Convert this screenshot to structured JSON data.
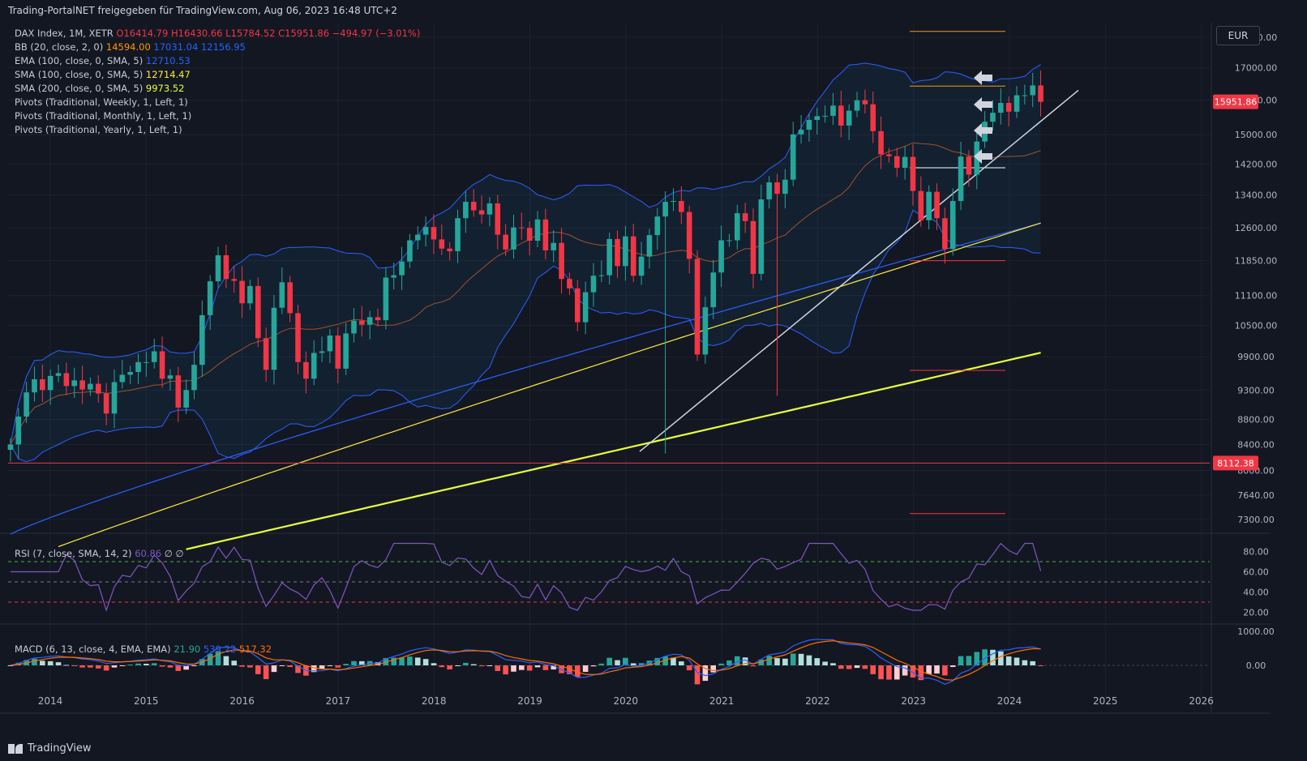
{
  "header": {
    "title": "Trading-PortalNET freigegeben für TradingView.com, Aug 06, 2023 16:48 UTC+2",
    "currency_button": "EUR",
    "footer_brand": "TradingView"
  },
  "legend": {
    "main": {
      "label": "DAX Index, 1M, XETR",
      "o": "O16414.79",
      "h": "H16430.66",
      "l": "L15784.52",
      "c": "C15951.86",
      "chg": "−494.97 (−3.01%)"
    },
    "bb": {
      "label": "BB (20, close, 2, 0)",
      "v1": "14594.00",
      "v2": "17031.04",
      "v3": "12156.95"
    },
    "ema100": {
      "label": "EMA (100, close, 0, SMA, 5)",
      "v": "12710.53"
    },
    "sma100": {
      "label": "SMA (100, close, 0, SMA, 5)",
      "v": "12714.47"
    },
    "sma200": {
      "label": "SMA (200, close, 0, SMA, 5)",
      "v": "9973.52"
    },
    "pivots": [
      "Pivots (Traditional, Weekly, 1, Left, 1)",
      "Pivots (Traditional, Monthly, 1, Left, 1)",
      "Pivots (Traditional, Yearly, 1, Left, 1)"
    ],
    "rsi": {
      "label": "RSI (7, close, SMA, 14, 2)",
      "v": "60.86",
      "extra": "∅ ∅"
    },
    "macd": {
      "label": "MACD (6, 13, close, 4, EMA, EMA)",
      "v1": "21.90",
      "v2": "539.22",
      "v3": "517.32"
    }
  },
  "colors": {
    "up": "#26a69a",
    "down": "#f23645",
    "bb": "#2962ff",
    "bb_basis": "#ff6d00",
    "ema": "#2962ff",
    "sma100": "#ffeb3b",
    "sma200": "#e7ff3b",
    "rsi": "#7e57c2",
    "macd": "#2962ff",
    "signal": "#ff6d00"
  },
  "chart_data": {
    "type": "candlestick",
    "symbol": "DAX Index",
    "interval": "1M",
    "x_axis": {
      "tick_labels": [
        "2014",
        "2015",
        "2016",
        "2017",
        "2018",
        "2019",
        "2020",
        "2021",
        "2022",
        "2023",
        "2024",
        "2025",
        "2026"
      ]
    },
    "y_axis": {
      "scale": "log",
      "tick_labels": [
        "18000.00",
        "17000.00",
        "16000.00",
        "15000.00",
        "14200.00",
        "13400.00",
        "12600.00",
        "11850.00",
        "11100.00",
        "10500.00",
        "9900.00",
        "9300.00",
        "8800.00",
        "8400.00",
        "8000.00",
        "7640.00",
        "7300.00"
      ],
      "range": [
        7200,
        18500
      ]
    },
    "price_labels": {
      "last": "15951.86",
      "line": "8112.38"
    },
    "closes": [
      8400,
      8850,
      9260,
      9490,
      9300,
      9550,
      9600,
      9370,
      9470,
      9310,
      9410,
      9240,
      8900,
      9440,
      9570,
      9620,
      9800,
      9800,
      10000,
      9500,
      9560,
      9000,
      9300,
      9750,
      10700,
      11400,
      11970,
      11450,
      11410,
      10940,
      11300,
      10250,
      9660,
      10850,
      11380,
      10740,
      9800,
      9500,
      9970,
      10000,
      10300,
      9680,
      10340,
      10590,
      10510,
      10660,
      10600,
      11480,
      11530,
      11830,
      12310,
      12440,
      12620,
      12330,
      12120,
      12060,
      12830,
      13230,
      13020,
      12920,
      13190,
      12440,
      12100,
      12610,
      12600,
      12300,
      12800,
      12080,
      12250,
      11450,
      11250,
      10560,
      11170,
      11520,
      11530,
      12340,
      11730,
      12400,
      11520,
      11940,
      12430,
      12870,
      13230,
      13250,
      12980,
      11890,
      9940,
      10860,
      11590,
      12310,
      12310,
      12950,
      12760,
      11560,
      13290,
      13720,
      13430,
      13790,
      15010,
      15140,
      15420,
      15530,
      15540,
      15840,
      15260,
      15690,
      16000,
      15880,
      15100,
      14460,
      14410,
      14100,
      14390,
      13500,
      12780,
      13480,
      12830,
      12110,
      13250,
      14400,
      13920,
      14810,
      15370,
      15630,
      15920,
      15660,
      16150,
      16150,
      16450,
      15952
    ],
    "bb_upper_end": 17031.04,
    "bb_basis_end": 14594.0,
    "bb_lower_end": 12156.95,
    "ema100_end": 12710.53,
    "sma100_end": 12714.47,
    "sma200_end": 9973.52,
    "rsi_levels": [
      "80.00",
      "60.00",
      "40.00",
      "20.00"
    ],
    "rsi_last": 60.86,
    "macd_levels": [
      "1000.00",
      "0.00"
    ],
    "macd": {
      "macd_last": 539.22,
      "signal_last": 517.32,
      "hist_last": 21.9
    }
  }
}
